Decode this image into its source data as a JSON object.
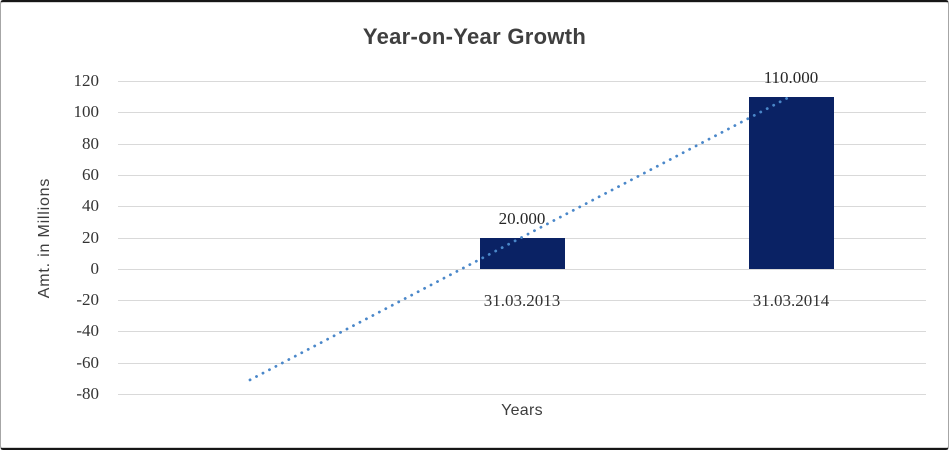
{
  "chart_data": {
    "type": "bar",
    "title": "Year-on-Year Growth",
    "categories": [
      "31.03.2013",
      "31.03.2014"
    ],
    "values": [
      20,
      110
    ],
    "data_labels": [
      "20.000",
      "110.000"
    ],
    "xlabel": "Years",
    "ylabel": "Amt. in Millions",
    "ylim": [
      -80,
      120
    ],
    "yticks": [
      120,
      100,
      80,
      60,
      40,
      20,
      0,
      -20,
      -40,
      -60,
      -80
    ],
    "grid": true,
    "legend": false,
    "trendline": {
      "type": "linear",
      "style": "dotted",
      "start_value": -71,
      "end_value": 110
    },
    "colors": {
      "bar": "#0a2264",
      "trendline": "#4a87c9",
      "gridline": "#d9d9d9",
      "title_text": "#3f3f3f",
      "label_text": "#262626",
      "tick_text": "#333333",
      "axis_title_text": "#3d3d3d"
    }
  }
}
